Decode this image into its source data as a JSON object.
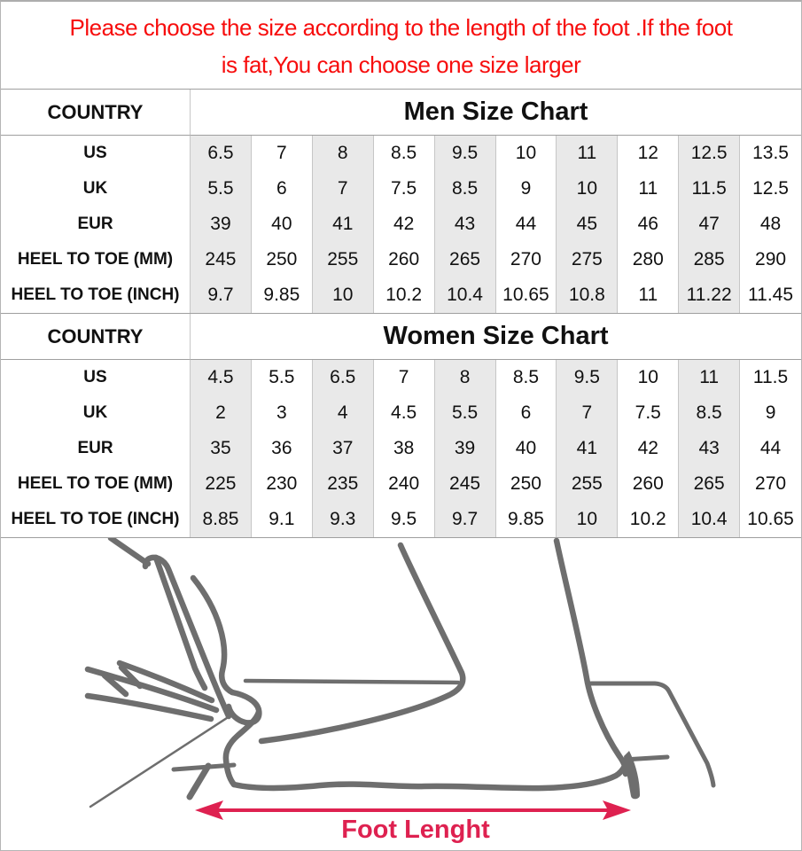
{
  "banner": {
    "line1": "Please choose the size according to the length of the foot .If the foot",
    "line2": "is fat,You can choose one size larger",
    "text_color": "#f70d0d"
  },
  "tables": [
    {
      "id": "men",
      "corner_label": "COUNTRY",
      "title": "Men Size Chart",
      "rows": [
        {
          "label": "US",
          "values": [
            "6.5",
            "7",
            "8",
            "8.5",
            "9.5",
            "10",
            "11",
            "12",
            "12.5",
            "13.5"
          ]
        },
        {
          "label": "UK",
          "values": [
            "5.5",
            "6",
            "7",
            "7.5",
            "8.5",
            "9",
            "10",
            "11",
            "11.5",
            "12.5"
          ]
        },
        {
          "label": "EUR",
          "values": [
            "39",
            "40",
            "41",
            "42",
            "43",
            "44",
            "45",
            "46",
            "47",
            "48"
          ]
        },
        {
          "label": "HEEL TO TOE (MM)",
          "values": [
            "245",
            "250",
            "255",
            "260",
            "265",
            "270",
            "275",
            "280",
            "285",
            "290"
          ]
        },
        {
          "label": "HEEL TO TOE (INCH)",
          "values": [
            "9.7",
            "9.85",
            "10",
            "10.2",
            "10.4",
            "10.65",
            "10.8",
            "11",
            "11.22",
            "11.45"
          ]
        }
      ]
    },
    {
      "id": "women",
      "corner_label": "COUNTRY",
      "title": "Women Size Chart",
      "rows": [
        {
          "label": "US",
          "values": [
            "4.5",
            "5.5",
            "6.5",
            "7",
            "8",
            "8.5",
            "9.5",
            "10",
            "11",
            "11.5"
          ]
        },
        {
          "label": "UK",
          "values": [
            "2",
            "3",
            "4",
            "4.5",
            "5.5",
            "6",
            "7",
            "7.5",
            "8.5",
            "9"
          ]
        },
        {
          "label": "EUR",
          "values": [
            "35",
            "36",
            "37",
            "38",
            "39",
            "40",
            "41",
            "42",
            "43",
            "44"
          ]
        },
        {
          "label": "HEEL TO TOE (MM)",
          "values": [
            "225",
            "230",
            "235",
            "240",
            "245",
            "250",
            "255",
            "260",
            "265",
            "270"
          ]
        },
        {
          "label": "HEEL TO TOE (INCH)",
          "values": [
            "8.85",
            "9.1",
            "9.3",
            "9.5",
            "9.7",
            "9.85",
            "10",
            "10.2",
            "10.4",
            "10.65"
          ]
        }
      ]
    }
  ],
  "diagram": {
    "arrow_label": "Foot Lenght",
    "arrow_color": "#de2150",
    "line_color": "#6e6e6e"
  },
  "style": {
    "shaded_column": "#e9e9e9",
    "grid_line_strong": "#9f9f9f",
    "grid_line_light": "#c6c6c6"
  }
}
